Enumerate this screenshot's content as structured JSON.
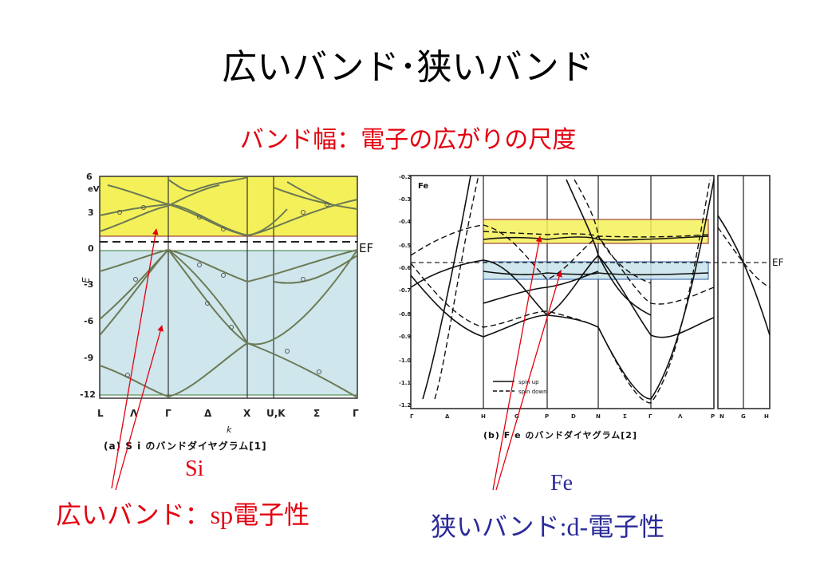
{
  "slide": {
    "title": "広いバンド･狭いバンド",
    "subtitle": "バンド幅：電子の広がりの尺度"
  },
  "colors": {
    "red": "#e3000f",
    "blue": "#2b2b9a",
    "yellow_band": "#f4f059",
    "blue_band": "#c7e3ea"
  },
  "si_figure": {
    "eV_label": "eV",
    "y_ticks": [
      "6",
      "3",
      "0",
      "-3",
      "-6",
      "-9",
      "-12"
    ],
    "k_ticks": [
      "L",
      "Λ",
      "Γ",
      "Δ",
      "X",
      "U,K",
      "Σ",
      "Γ"
    ],
    "k_label": "k",
    "ef_label": "EF",
    "axis_symbol": "E",
    "caption": "(a) S i のバンドダイヤグラム[1]",
    "element_label": "Si"
  },
  "fe_figure": {
    "element_tag": "Fe",
    "y_ticks": [
      "-0.2",
      "-0.3",
      "-0.4",
      "-0.5",
      "-0.6",
      "-0.7",
      "-0.8",
      "-0.9",
      "-1.0",
      "-1.1",
      "-1.2"
    ],
    "k_ticks": [
      "Γ",
      "Δ",
      "H",
      "G",
      "P",
      "D",
      "N",
      "Σ",
      "Γ",
      "Λ",
      "P",
      "N",
      "G",
      "H"
    ],
    "ef_label": "EF",
    "legend_spin_up": "spin up",
    "legend_spin_down": "spin down",
    "caption": "(b) F e のバンドダイヤグラム[2]",
    "element_label": "Fe"
  },
  "annotations": {
    "wide_band_prefix": "広いバンド：",
    "wide_band_sp": "sp",
    "wide_band_suffix": "電子性",
    "narrow_band_prefix": "狭いバンド",
    "narrow_band_d": ":d-",
    "narrow_band_suffix": "電子性"
  }
}
